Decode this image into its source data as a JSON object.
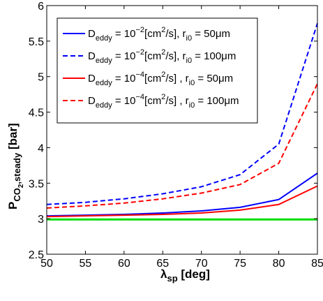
{
  "chart_data": {
    "type": "line",
    "xlabel": {
      "main": "λ",
      "sub": "sp",
      "rest": " [deg]"
    },
    "ylabel": {
      "main": "P",
      "sub1": "CO",
      "subsub": "2",
      "sub2": ",steady",
      "rest": " [bar]"
    },
    "xlim": [
      50,
      85
    ],
    "ylim": [
      2.5,
      6
    ],
    "x_ticks": [
      50,
      55,
      60,
      65,
      70,
      75,
      80,
      85
    ],
    "y_ticks": [
      2.5,
      3,
      3.5,
      4,
      4.5,
      5,
      5.5,
      6
    ],
    "y_tick_labels": [
      "2.5",
      "3",
      "3.5",
      "4",
      "4.5",
      "5",
      "5.5",
      "6"
    ],
    "x_tick_labels": [
      "50",
      "55",
      "60",
      "65",
      "70",
      "75",
      "80",
      "85"
    ],
    "grid": false,
    "legend_position": "top-left",
    "x": [
      50,
      55,
      60,
      65,
      70,
      75,
      80,
      85
    ],
    "series": [
      {
        "name": "D_eddy = 10^-2[cm^2/s], r_i0 = 50μm",
        "legend": {
          "d": "D",
          "dsub": "eddy",
          "eq": " = 10",
          "exp": "−2",
          "mid": "[cm",
          "exp2": "2",
          "tail": "/s], r",
          "rsub": "i0",
          "val": " = 50μm"
        },
        "color": "#0000ff",
        "dash": "solid",
        "values": [
          3.04,
          3.05,
          3.06,
          3.08,
          3.11,
          3.16,
          3.27,
          3.64
        ]
      },
      {
        "name": "D_eddy = 10^-2[cm^2/s], r_i0 = 100μm",
        "legend": {
          "d": "D",
          "dsub": "eddy",
          "eq": " = 10",
          "exp": "−2",
          "mid": "[cm",
          "exp2": "2",
          "tail": "/s], r",
          "rsub": "i0",
          "val": " = 100μm"
        },
        "color": "#0000ff",
        "dash": "dashed",
        "values": [
          3.2,
          3.23,
          3.28,
          3.35,
          3.45,
          3.62,
          4.05,
          5.75
        ]
      },
      {
        "name": "D_eddy = 10^-4[cm^2/s], r_i0 = 50μm",
        "legend": {
          "d": "D",
          "dsub": "eddy",
          "eq": " = 10",
          "exp": "−4",
          "mid": "[cm",
          "exp2": "2",
          "tail": "/s] , r",
          "rsub": "i0",
          "val": " = 50μm"
        },
        "color": "#ff0000",
        "dash": "solid",
        "values": [
          3.03,
          3.04,
          3.05,
          3.06,
          3.08,
          3.12,
          3.2,
          3.46
        ]
      },
      {
        "name": "D_eddy = 10^-4[cm^2/s], r_i0 = 100μm",
        "legend": {
          "d": "D",
          "dsub": "eddy",
          "eq": " = 10",
          "exp": "−4",
          "mid": "[cm",
          "exp2": "2",
          "tail": "/s] , r",
          "rsub": "i0",
          "val": " = 100μm"
        },
        "color": "#ff0000",
        "dash": "dashed",
        "values": [
          3.15,
          3.18,
          3.22,
          3.28,
          3.36,
          3.48,
          3.78,
          4.9
        ]
      },
      {
        "name": "",
        "legend": null,
        "color": "#00dd00",
        "dash": "solid",
        "values": [
          2.99,
          2.99,
          2.99,
          2.99,
          2.99,
          2.99,
          2.99,
          2.99
        ]
      }
    ]
  }
}
